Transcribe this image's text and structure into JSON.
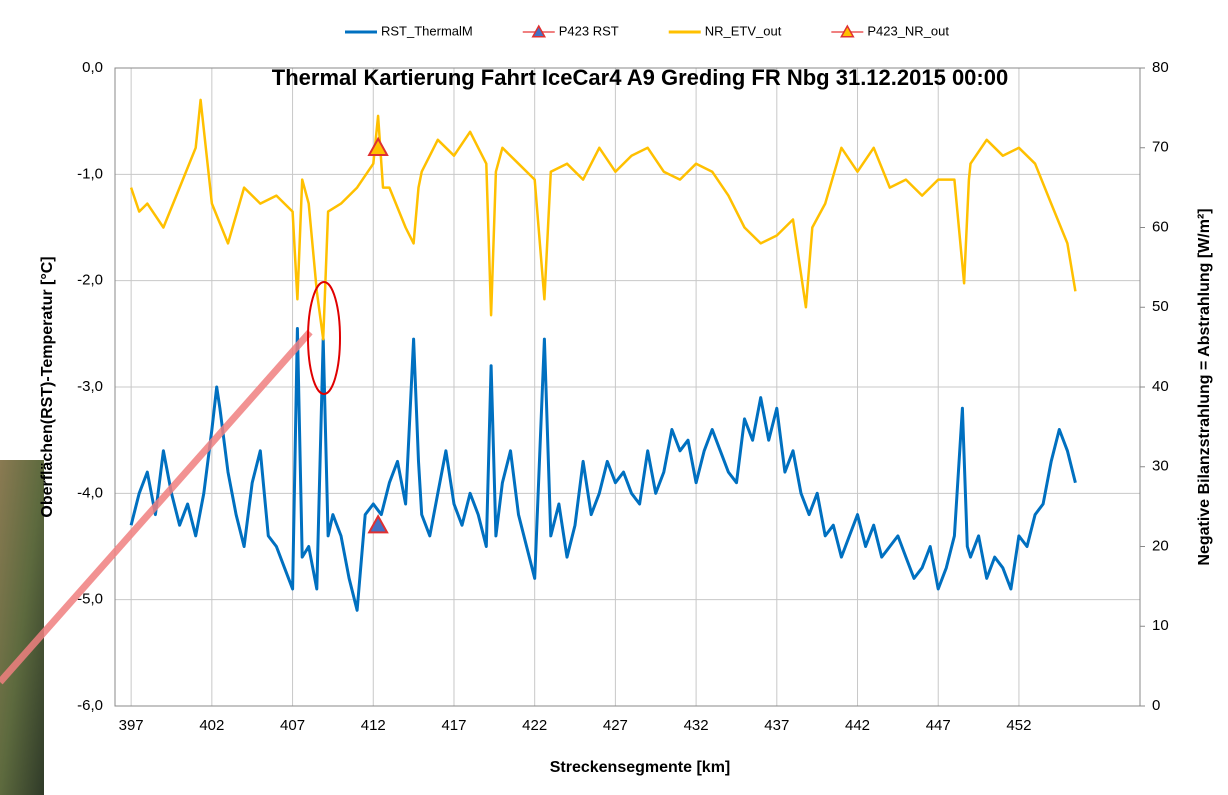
{
  "chart_data": {
    "type": "line",
    "title": "Thermal Kartierung Fahrt IceCar4 A9 Greding FR Nbg 31.12.2015 00:00",
    "x_label": "Streckensegmente [km]",
    "y_label": "Oberflächen(RST)-Temperatur [°C]",
    "y2_label": "Negative Bilanzstrahlung = Abstrahlung [W/m²]",
    "legend": "top",
    "grid": true,
    "xlim": [
      396,
      459.5
    ],
    "xticks": [
      397,
      402,
      407,
      412,
      417,
      422,
      427,
      432,
      437,
      442,
      447,
      452
    ],
    "ylim": [
      -6,
      0
    ],
    "yticks": [
      {
        "value": -6,
        "label": "-6,0"
      },
      {
        "value": -5,
        "label": "-5,0"
      },
      {
        "value": -4,
        "label": "-4,0"
      },
      {
        "value": -3,
        "label": "-3,0"
      },
      {
        "value": -2,
        "label": "-2,0"
      },
      {
        "value": -1,
        "label": "-1,0"
      },
      {
        "value": 0,
        "label": "0,0"
      }
    ],
    "y2lim": [
      0,
      80
    ],
    "y2ticks": [
      0,
      10,
      20,
      30,
      40,
      50,
      60,
      70,
      80
    ],
    "series": [
      {
        "name": "RST_ThermalM",
        "color": "#0070C0",
        "x": [
          397,
          397.5,
          398,
          398.5,
          399,
          399.5,
          400,
          400.5,
          401,
          401.5,
          402,
          402.3,
          402.5,
          403,
          403.5,
          404,
          404.5,
          405,
          405.5,
          406,
          406.5,
          407,
          407.3,
          407.6,
          408,
          408.5,
          408.9,
          409.2,
          409.5,
          410,
          410.5,
          411,
          411.5,
          412,
          412.5,
          413,
          413.5,
          414,
          414.5,
          414.8,
          415,
          415.5,
          416,
          416.5,
          417,
          417.5,
          418,
          418.5,
          419,
          419.3,
          419.6,
          420,
          420.5,
          421,
          421.5,
          422,
          422.6,
          423,
          423.5,
          424,
          424.5,
          425,
          425.5,
          426,
          426.5,
          427,
          427.5,
          428,
          428.5,
          429,
          429.5,
          430,
          430.5,
          431,
          431.5,
          432,
          432.5,
          433,
          433.5,
          434,
          434.5,
          435,
          435.5,
          436,
          436.5,
          437,
          437.5,
          438,
          438.5,
          439,
          439.5,
          440,
          440.5,
          441,
          441.5,
          442,
          442.5,
          443,
          443.5,
          444,
          444.5,
          445,
          445.5,
          446,
          446.5,
          447,
          447.5,
          448,
          448.5,
          448.8,
          449,
          449.5,
          450,
          450.5,
          451,
          451.5,
          452,
          452.5,
          453,
          453.5,
          454,
          454.5,
          455,
          455.5
        ],
        "values": [
          -4.3,
          -4.0,
          -3.8,
          -4.2,
          -3.6,
          -4.0,
          -4.3,
          -4.1,
          -4.4,
          -4.0,
          -3.4,
          -3.0,
          -3.2,
          -3.8,
          -4.2,
          -4.5,
          -3.9,
          -3.6,
          -4.4,
          -4.5,
          -4.7,
          -4.9,
          -2.45,
          -4.6,
          -4.5,
          -4.9,
          -2.55,
          -4.4,
          -4.2,
          -4.4,
          -4.8,
          -5.1,
          -4.2,
          -4.1,
          -4.2,
          -3.9,
          -3.7,
          -4.1,
          -2.55,
          -3.7,
          -4.2,
          -4.4,
          -4.0,
          -3.6,
          -4.1,
          -4.3,
          -4.0,
          -4.2,
          -4.5,
          -2.8,
          -4.4,
          -3.9,
          -3.6,
          -4.2,
          -4.5,
          -4.8,
          -2.55,
          -4.4,
          -4.1,
          -4.6,
          -4.3,
          -3.7,
          -4.2,
          -4.0,
          -3.7,
          -3.9,
          -3.8,
          -4.0,
          -4.1,
          -3.6,
          -4.0,
          -3.8,
          -3.4,
          -3.6,
          -3.5,
          -3.9,
          -3.6,
          -3.4,
          -3.6,
          -3.8,
          -3.9,
          -3.3,
          -3.5,
          -3.1,
          -3.5,
          -3.2,
          -3.8,
          -3.6,
          -4.0,
          -4.2,
          -4.0,
          -4.4,
          -4.3,
          -4.6,
          -4.4,
          -4.2,
          -4.5,
          -4.3,
          -4.6,
          -4.5,
          -4.4,
          -4.6,
          -4.8,
          -4.7,
          -4.5,
          -4.9,
          -4.7,
          -4.4,
          -3.2,
          -4.5,
          -4.6,
          -4.4,
          -4.8,
          -4.6,
          -4.7,
          -4.9,
          -4.4,
          -4.5,
          -4.2,
          -4.1,
          -3.7,
          -3.4,
          -3.6,
          -3.9
        ]
      },
      {
        "name": "P423 RST",
        "color": "#4472C4",
        "edge": "#E03030",
        "marker": "triangle",
        "x": [
          412.3
        ],
        "values": [
          -4.3
        ]
      },
      {
        "name": "NR_ETV_out",
        "color": "#FFC000",
        "axis": "y2",
        "x": [
          397,
          397.5,
          398,
          399,
          400,
          401,
          401.3,
          402,
          403,
          404,
          405,
          406,
          407,
          407.3,
          407.6,
          408,
          408.5,
          408.9,
          409.2,
          410,
          411,
          412,
          412.3,
          412.6,
          413,
          414,
          414.5,
          414.8,
          415,
          416,
          417,
          418,
          419,
          419.3,
          419.6,
          420,
          421,
          422,
          422.6,
          423,
          424,
          425,
          426,
          427,
          428,
          429,
          430,
          431,
          432,
          433,
          434,
          435,
          436,
          437,
          438,
          438.8,
          439.2,
          440,
          441,
          442,
          443,
          444,
          445,
          446,
          447,
          448,
          448.6,
          448.9,
          449,
          450,
          451,
          452,
          453,
          454,
          455,
          455.5
        ],
        "values": [
          65,
          62,
          63,
          60,
          65,
          70,
          76,
          63,
          58,
          65,
          63,
          64,
          62,
          51,
          66,
          63,
          52,
          46,
          62,
          63,
          65,
          68,
          74,
          65,
          65,
          60,
          58,
          65,
          67,
          71,
          69,
          72,
          68,
          49,
          67,
          70,
          68,
          66,
          51,
          67,
          68,
          66,
          70,
          67,
          69,
          70,
          67,
          66,
          68,
          67,
          64,
          60,
          58,
          59,
          61,
          50,
          60,
          63,
          70,
          67,
          70,
          65,
          66,
          64,
          66,
          66,
          53,
          66,
          68,
          71,
          69,
          70,
          68,
          63,
          58,
          52
        ]
      },
      {
        "name": "P423_NR_out",
        "color": "#FFC000",
        "edge": "#E03030",
        "marker": "triangle",
        "axis": "y2",
        "x": [
          412.3
        ],
        "values": [
          70
        ]
      }
    ]
  }
}
